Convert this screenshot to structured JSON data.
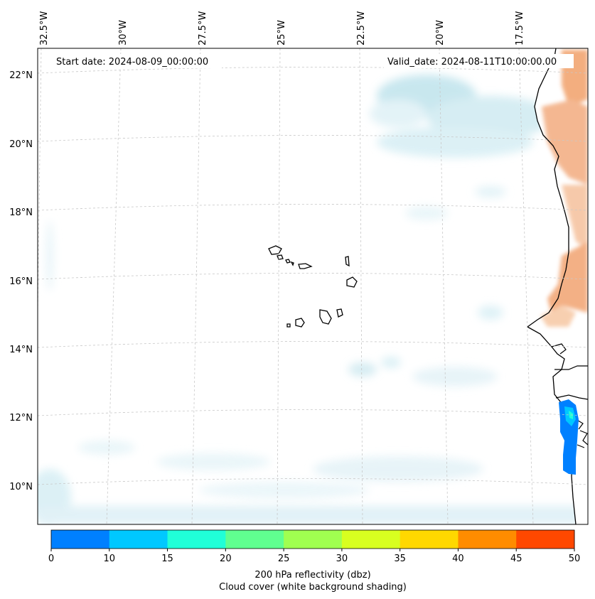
{
  "map": {
    "region": "Eastern tropical North Atlantic, Cabo Verde and West African coast",
    "start_date_label": "Start date: 2024-08-09_00:00:00",
    "valid_date_label": "Valid_date: 2024-08-11T10:00:00.00",
    "lon_ticks": [
      "32.5°W",
      "30°W",
      "27.5°W",
      "25°W",
      "22.5°W",
      "20°W",
      "17.5°W"
    ],
    "lat_ticks": [
      "22°N",
      "20°N",
      "18°N",
      "16°N",
      "14°N",
      "12°N",
      "10°N"
    ],
    "gridlines": true,
    "land_shading_color": "#f4a460",
    "cloud_shading_color": "#a8d8e6"
  },
  "colorbar": {
    "ticks": [
      "0",
      "10",
      "15",
      "20",
      "25",
      "30",
      "35",
      "40",
      "45",
      "50"
    ],
    "colors": [
      "#0080ff",
      "#00c8ff",
      "#20ffd8",
      "#60ff90",
      "#a0ff50",
      "#d8ff20",
      "#ffd800",
      "#ff8c00",
      "#ff4800"
    ],
    "title_line1": "200 hPa reflectivity (dbz)",
    "title_line2": "Cloud cover (white background shading)"
  }
}
